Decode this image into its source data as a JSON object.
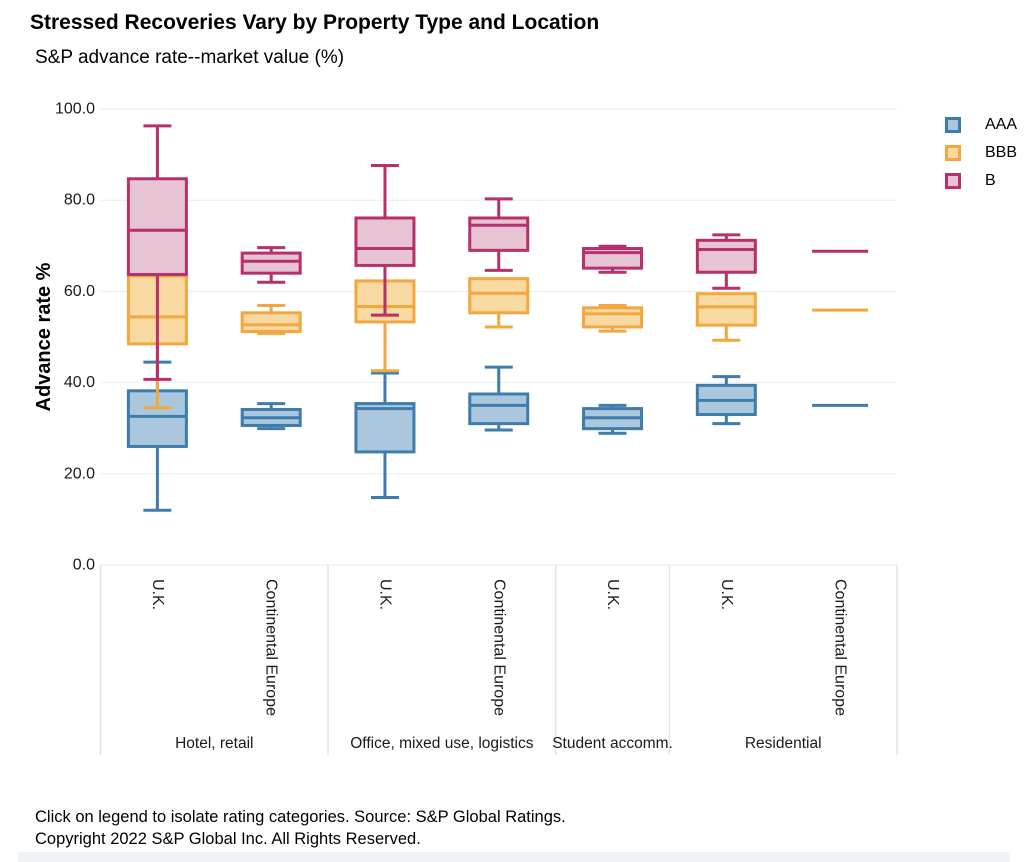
{
  "title": "Stressed Recoveries Vary by Property Type and Location",
  "subtitle": "S&P advance rate--market value (%)",
  "footer": {
    "line1": "Click on legend to isolate rating categories. Source: S&P Global Ratings.",
    "line2": "Copyright 2022 S&P Global Inc. All Rights Reserved."
  },
  "chart_data": {
    "type": "boxplot",
    "ylabel": "Advance rate %",
    "ylim": [
      0,
      100
    ],
    "grid": true,
    "legend_position": "top-right",
    "yticks": [
      {
        "value": 100,
        "label": "100.0"
      },
      {
        "value": 80,
        "label": "80.0"
      },
      {
        "value": 60,
        "label": "60.0"
      },
      {
        "value": 40,
        "label": "40.0"
      },
      {
        "value": 20,
        "label": "20.0"
      },
      {
        "value": 0,
        "label": "0.0"
      }
    ],
    "series": [
      {
        "name": "AAA",
        "stroke": "#3e7cab",
        "fill": "#aac7de"
      },
      {
        "name": "BBB",
        "stroke": "#f2a73f",
        "fill": "#f8d9a1"
      },
      {
        "name": "B",
        "stroke": "#b72f6b",
        "fill": "#e6c4d4"
      }
    ],
    "property_groups": [
      {
        "label": "Hotel, retail",
        "slots": [
          0,
          1
        ]
      },
      {
        "label": "Office, mixed use, logistics",
        "slots": [
          2,
          3
        ]
      },
      {
        "label": "Student accomm.",
        "slots": [
          4
        ]
      },
      {
        "label": "Residential",
        "slots": [
          5,
          6
        ]
      }
    ],
    "slots": [
      {
        "location": "U.K.",
        "group": 0,
        "stats": {
          "AAA": {
            "min": 12.0,
            "q1": 26.0,
            "med": 32.6,
            "q3": 38.2,
            "max": 44.5
          },
          "BBB": {
            "min": 34.5,
            "q1": 48.5,
            "med": 54.4,
            "q3": 63.4,
            "max": 63.4
          },
          "B": {
            "min": 40.7,
            "q1": 63.7,
            "med": 73.4,
            "q3": 84.7,
            "max": 96.3
          }
        }
      },
      {
        "location": "Continental Europe",
        "group": 0,
        "stats": {
          "AAA": {
            "min": 29.9,
            "q1": 30.6,
            "med": 32.3,
            "q3": 34.1,
            "max": 35.4
          },
          "BBB": {
            "min": 50.8,
            "q1": 51.2,
            "med": 52.7,
            "q3": 55.3,
            "max": 56.9
          },
          "B": {
            "min": 62.0,
            "q1": 64.0,
            "med": 66.6,
            "q3": 68.4,
            "max": 69.6
          }
        }
      },
      {
        "location": "U.K.",
        "group": 1,
        "stats": {
          "AAA": {
            "min": 14.8,
            "q1": 24.8,
            "med": 34.3,
            "q3": 35.4,
            "max": 42.1
          },
          "BBB": {
            "min": 42.6,
            "q1": 53.3,
            "med": 56.7,
            "q3": 62.3,
            "max": 62.3
          },
          "B": {
            "min": 54.8,
            "q1": 65.7,
            "med": 69.4,
            "q3": 76.1,
            "max": 87.6
          }
        }
      },
      {
        "location": "Continental Europe",
        "group": 1,
        "stats": {
          "AAA": {
            "min": 29.6,
            "q1": 31.0,
            "med": 35.0,
            "q3": 37.5,
            "max": 43.4
          },
          "BBB": {
            "min": 52.2,
            "q1": 55.3,
            "med": 59.6,
            "q3": 62.8,
            "max": 62.8
          },
          "B": {
            "min": 64.6,
            "q1": 69.0,
            "med": 74.5,
            "q3": 76.1,
            "max": 80.3
          }
        }
      },
      {
        "location": "U.K.",
        "group": 2,
        "stats": {
          "AAA": {
            "min": 28.9,
            "q1": 29.9,
            "med": 32.3,
            "q3": 34.3,
            "max": 35.0
          },
          "BBB": {
            "min": 51.3,
            "q1": 52.2,
            "med": 55.1,
            "q3": 56.4,
            "max": 56.9
          },
          "B": {
            "min": 64.2,
            "q1": 65.1,
            "med": 68.5,
            "q3": 69.4,
            "max": 69.9
          }
        }
      },
      {
        "location": "U.K.",
        "group": 3,
        "stats": {
          "AAA": {
            "min": 31.0,
            "q1": 33.0,
            "med": 36.1,
            "q3": 39.4,
            "max": 41.3
          },
          "BBB": {
            "min": 49.3,
            "q1": 52.6,
            "med": 56.6,
            "q3": 59.5,
            "max": 59.5
          },
          "B": {
            "min": 60.7,
            "q1": 64.2,
            "med": 69.2,
            "q3": 71.2,
            "max": 72.4
          }
        }
      },
      {
        "location": "Continental Europe",
        "group": 3,
        "stats": {
          "AAA": {
            "value": 35.0
          },
          "BBB": {
            "value": 55.9
          },
          "B": {
            "value": 68.8
          }
        }
      }
    ]
  }
}
